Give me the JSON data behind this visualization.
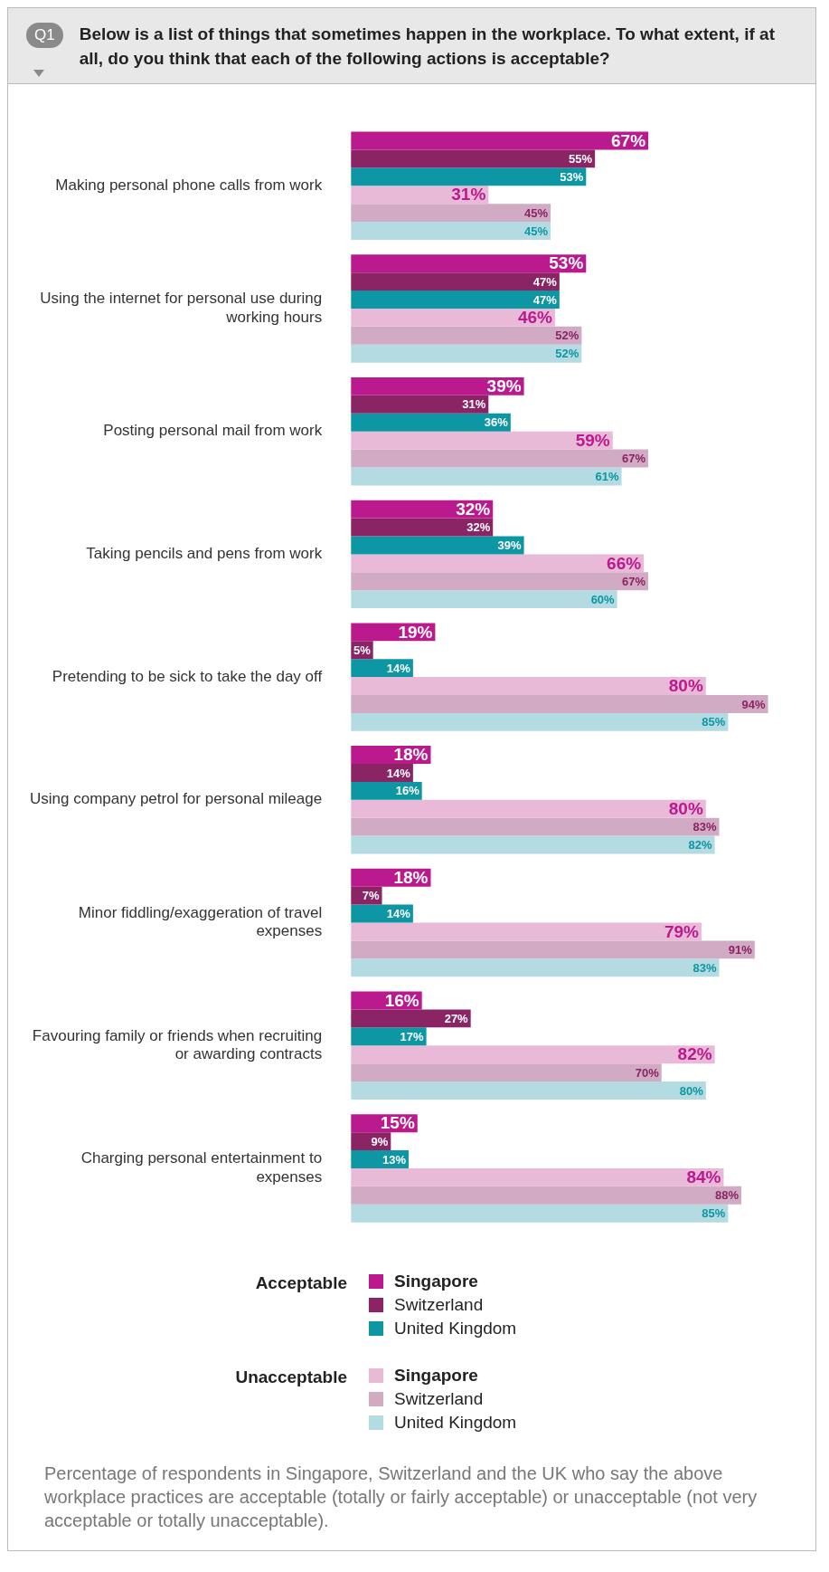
{
  "chart_data": {
    "type": "bar",
    "orientation": "horizontal",
    "title": "Below is a list of things that sometimes happen in the workplace. To what extent, if at all, do you think that each of the following actions is acceptable?",
    "categories": [
      "Making personal phone calls from work",
      "Using the internet for personal use during working hours",
      "Posting personal mail from work",
      "Taking pencils and pens from work",
      "Pretending to be sick to take the day off",
      "Using company petrol for personal mileage",
      "Minor fiddling/exaggeration of travel expenses",
      "Favouring family or friends when recruiting or awarding contracts",
      "Charging personal entertainment to expenses"
    ],
    "series": [
      {
        "name": "Singapore",
        "color": "#bb1a8e",
        "values": [
          67,
          53,
          39,
          32,
          19,
          18,
          18,
          16,
          15
        ],
        "value_labels": [
          "67%",
          "53%",
          "39%",
          "32%",
          "19%",
          "18%",
          "18%",
          "16%",
          "15%"
        ]
      },
      {
        "name": "Switzerland",
        "color": "#8a2465",
        "values": [
          55,
          47,
          31,
          32,
          5,
          14,
          7,
          27,
          9
        ],
        "value_labels": [
          "55%",
          "47%",
          "31%",
          "32%",
          "5%",
          "14%",
          "7%",
          "27%",
          "9%"
        ]
      },
      {
        "name": "United Kingdom",
        "color": "#0d96a3",
        "values": [
          53,
          47,
          36,
          39,
          14,
          16,
          14,
          17,
          13
        ],
        "value_labels": [
          "53%",
          "47%",
          "36%",
          "39%",
          "14%",
          "16%",
          "14%",
          "17%",
          "13%"
        ]
      },
      {
        "name": "Singapore",
        "color": "#e8bad8",
        "values": [
          31,
          46,
          59,
          66,
          80,
          80,
          79,
          82,
          84
        ],
        "value_labels": [
          "31%",
          "46%",
          "59%",
          "66%",
          "80%",
          "80%",
          "79%",
          "82%",
          "84%"
        ]
      },
      {
        "name": "Switzerland",
        "color": "#d0abc3",
        "values": [
          45,
          52,
          67,
          67,
          94,
          83,
          91,
          70,
          88
        ],
        "value_labels": [
          "45%",
          "52%",
          "67%",
          "67%",
          "94%",
          "83%",
          "91%",
          "70%",
          "88%"
        ]
      },
      {
        "name": "United Kingdom",
        "color": "#b4dbe1",
        "values": [
          45,
          52,
          61,
          60,
          85,
          82,
          83,
          80,
          85
        ],
        "value_labels": [
          "45%",
          "52%",
          "61%",
          "60%",
          "85%",
          "82%",
          "83%",
          "80%",
          "85%"
        ]
      }
    ],
    "legend": "bottom",
    "annotations": [
      "Q1",
      "Acceptable",
      "Unacceptable",
      "Percentage of respondents in Singapore, Switzerland and the UK who say the above workplace practices are acceptable (totally or fairly acceptable) or unacceptable (not very acceptable or totally unacceptable)."
    ]
  }
}
